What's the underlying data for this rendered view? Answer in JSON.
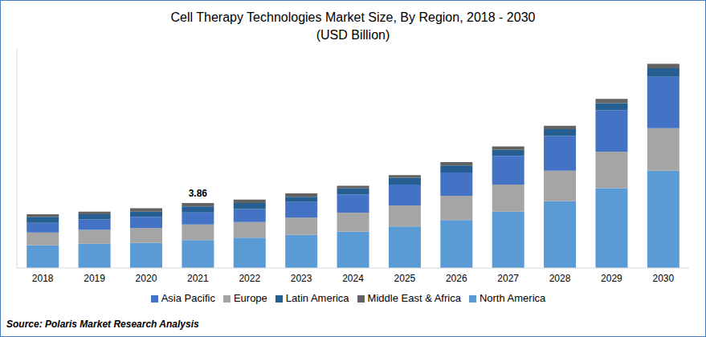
{
  "chart_data": {
    "type": "bar",
    "title": "Cell Therapy Technologies Market Size, By Region, 2018 - 2030",
    "subtitle": "(USD Billion)",
    "source": "Source: Polaris Market Research Analysis",
    "categories": [
      "2018",
      "2019",
      "2020",
      "2021",
      "2022",
      "2023",
      "2024",
      "2025",
      "2026",
      "2027",
      "2028",
      "2029",
      "2030"
    ],
    "series": [
      {
        "name": "North America",
        "color": "#5b9bd5",
        "values": [
          1.34,
          1.44,
          1.49,
          1.65,
          1.8,
          1.96,
          2.16,
          2.47,
          2.84,
          3.35,
          3.97,
          4.74,
          5.77
        ]
      },
      {
        "name": "Europe",
        "color": "#a5a5a5",
        "values": [
          0.77,
          0.82,
          0.88,
          0.93,
          0.93,
          1.03,
          1.13,
          1.24,
          1.44,
          1.6,
          1.8,
          2.16,
          2.53
        ]
      },
      {
        "name": "Asia Pacific",
        "color": "#4472c4",
        "values": [
          0.57,
          0.62,
          0.67,
          0.72,
          0.77,
          0.93,
          1.08,
          1.24,
          1.39,
          1.7,
          2.06,
          2.47,
          3.04
        ]
      },
      {
        "name": "Latin America",
        "color": "#255e91",
        "values": [
          0.36,
          0.31,
          0.31,
          0.36,
          0.36,
          0.31,
          0.36,
          0.41,
          0.41,
          0.36,
          0.41,
          0.41,
          0.52
        ]
      },
      {
        "name": "Middle East & Africa",
        "color": "#636363",
        "values": [
          0.15,
          0.15,
          0.2,
          0.2,
          0.2,
          0.2,
          0.15,
          0.15,
          0.2,
          0.2,
          0.2,
          0.26,
          0.26
        ]
      }
    ],
    "annotations": [
      {
        "x": "2021",
        "y": 3.86,
        "text": "3.86"
      }
    ],
    "ylim": [
      0,
      13
    ],
    "stacked": true,
    "grid": false,
    "legend": "bottom",
    "tick_labels": "x"
  }
}
